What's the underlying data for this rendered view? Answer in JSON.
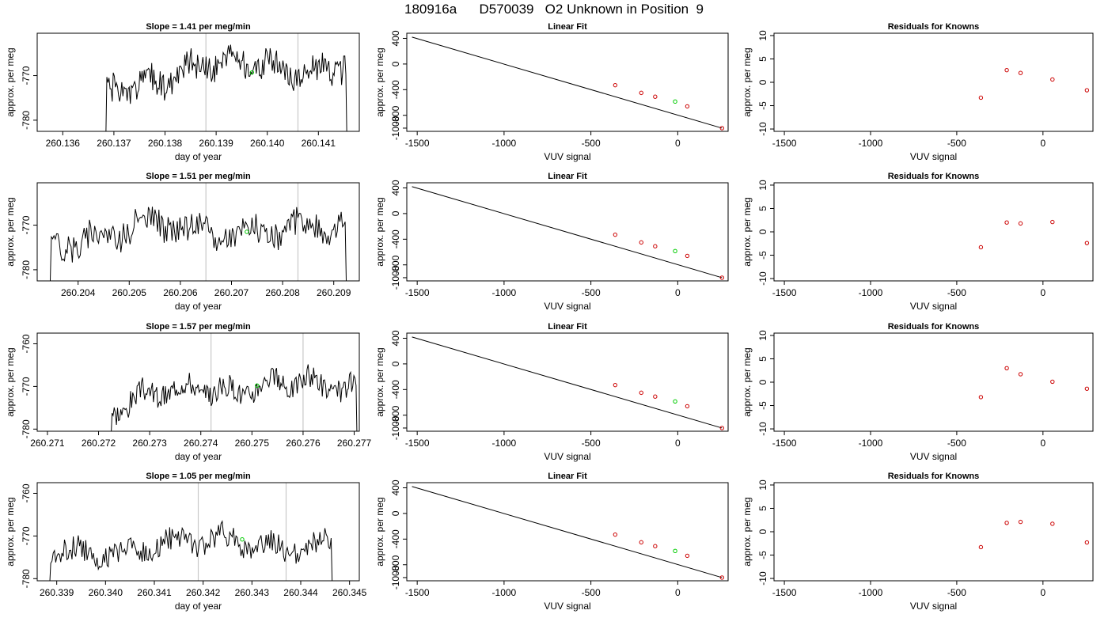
{
  "page_title": "180916a      D570039   O2 Unknown in Position  9",
  "colors": {
    "trace": "#000000",
    "fit_line": "#000000",
    "known_point": "#cc0000",
    "unknown_point": "#00cc00",
    "marker_line": "#c8c8c8",
    "axis": "#000000"
  },
  "chart_data": [
    {
      "type": "line",
      "panel": "trace",
      "title": "Slope =  1.41  per meg/min",
      "xlabel": "day of year",
      "ylabel": "approx. per meg",
      "xlim": [
        260.1355,
        260.1418
      ],
      "ylim": [
        -782.5,
        -760.5
      ],
      "xticks": [
        "260.136",
        "260.137",
        "260.138",
        "260.139",
        "260.140",
        "260.141"
      ],
      "yticks": [
        "-780",
        "-770"
      ],
      "markers_x": [
        260.1388,
        260.1406
      ],
      "green_point": {
        "x": 260.1397,
        "y": -769.3
      },
      "trace": {
        "x_start": 260.1368,
        "x_end": 260.1416,
        "mean": -768,
        "amp": 4,
        "rise": 7,
        "seed": 1
      }
    },
    {
      "type": "scatter",
      "panel": "fit",
      "title": "Linear Fit",
      "xlabel": "VUV signal",
      "ylabel": "approx. per meg",
      "xlim": [
        -1560,
        290
      ],
      "ylim": [
        -1050,
        480
      ],
      "xticks": [
        "-1500",
        "-1000",
        "-500",
        "0"
      ],
      "yticks": [
        "-1000",
        "-800",
        "-400",
        "0",
        "400"
      ],
      "line": {
        "x": [
          -1530,
          255
        ],
        "y": [
          420,
          -1000
        ]
      },
      "known_points": [
        [
          -360,
          -330
        ],
        [
          -210,
          -450
        ],
        [
          -130,
          -510
        ],
        [
          55,
          -660
        ],
        [
          255,
          -1000
        ]
      ],
      "unknown_point": [
        -15,
        -585
      ]
    },
    {
      "type": "scatter",
      "panel": "residual",
      "title": "Residuals for Knowns",
      "xlabel": "VUV signal",
      "ylabel": "approx. per meg",
      "xlim": [
        -1560,
        290
      ],
      "ylim": [
        -10.5,
        10.5
      ],
      "xticks": [
        "-1500",
        "-1000",
        "-500",
        "0"
      ],
      "yticks": [
        "-10",
        "-5",
        "0",
        "5",
        "10"
      ],
      "known_points": [
        [
          -360,
          -3.3
        ],
        [
          -210,
          2.6
        ],
        [
          -130,
          2.0
        ],
        [
          55,
          0.6
        ],
        [
          255,
          -1.7
        ]
      ]
    },
    {
      "type": "line",
      "panel": "trace",
      "title": "Slope =  1.51  per meg/min",
      "xlabel": "day of year",
      "ylabel": "approx. per meg",
      "xlim": [
        260.2032,
        260.2095
      ],
      "ylim": [
        -782.5,
        -760.5
      ],
      "xticks": [
        "260.204",
        "260.205",
        "260.206",
        "260.207",
        "260.208",
        "260.209"
      ],
      "yticks": [
        "-780",
        "-770"
      ],
      "markers_x": [
        260.2065,
        260.2083
      ],
      "green_point": {
        "x": 260.2073,
        "y": -771.5
      },
      "trace": {
        "x_start": 260.2034,
        "x_end": 260.2093,
        "mean": -771,
        "amp": 4,
        "rise": 2,
        "seed": 2
      }
    },
    {
      "type": "scatter",
      "panel": "fit",
      "title": "Linear Fit",
      "xlabel": "VUV signal",
      "ylabel": "approx. per meg",
      "xlim": [
        -1560,
        290
      ],
      "ylim": [
        -1050,
        480
      ],
      "xticks": [
        "-1500",
        "-1000",
        "-500",
        "0"
      ],
      "yticks": [
        "-1000",
        "-800",
        "-400",
        "0",
        "400"
      ],
      "line": {
        "x": [
          -1530,
          255
        ],
        "y": [
          420,
          -1000
        ]
      },
      "known_points": [
        [
          -360,
          -330
        ],
        [
          -210,
          -450
        ],
        [
          -130,
          -510
        ],
        [
          55,
          -660
        ],
        [
          255,
          -1000
        ]
      ],
      "unknown_point": [
        -15,
        -585
      ]
    },
    {
      "type": "scatter",
      "panel": "residual",
      "title": "Residuals for Knowns",
      "xlabel": "VUV signal",
      "ylabel": "approx. per meg",
      "xlim": [
        -1560,
        290
      ],
      "ylim": [
        -10.5,
        10.5
      ],
      "xticks": [
        "-1500",
        "-1000",
        "-500",
        "0"
      ],
      "yticks": [
        "-10",
        "-5",
        "0",
        "5",
        "10"
      ],
      "known_points": [
        [
          -360,
          -3.3
        ],
        [
          -210,
          2.0
        ],
        [
          -130,
          1.8
        ],
        [
          55,
          2.1
        ],
        [
          255,
          -2.4
        ]
      ]
    },
    {
      "type": "line",
      "panel": "trace",
      "title": "Slope =  1.57  per meg/min",
      "xlabel": "day of year",
      "ylabel": "approx. per meg",
      "xlim": [
        260.2708,
        260.2771
      ],
      "ylim": [
        -780.5,
        -757.5
      ],
      "xticks": [
        "260.271",
        "260.272",
        "260.273",
        "260.274",
        "260.275",
        "260.276",
        "260.277"
      ],
      "yticks": [
        "-780",
        "-770",
        "-760"
      ],
      "markers_x": [
        260.2742,
        260.276
      ],
      "green_point": {
        "x": 260.2751,
        "y": -769.8
      },
      "trace": {
        "x_start": 260.2722,
        "x_end": 260.2771,
        "mean": -770,
        "amp": 3.5,
        "rise": 6,
        "seed": 3
      }
    },
    {
      "type": "scatter",
      "panel": "fit",
      "title": "Linear Fit",
      "xlabel": "VUV signal",
      "ylabel": "approx. per meg",
      "xlim": [
        -1560,
        290
      ],
      "ylim": [
        -1050,
        480
      ],
      "xticks": [
        "-1500",
        "-1000",
        "-500",
        "0"
      ],
      "yticks": [
        "-1000",
        "-800",
        "-400",
        "0",
        "400"
      ],
      "line": {
        "x": [
          -1530,
          255
        ],
        "y": [
          420,
          -1000
        ]
      },
      "known_points": [
        [
          -360,
          -330
        ],
        [
          -210,
          -450
        ],
        [
          -130,
          -510
        ],
        [
          55,
          -660
        ],
        [
          255,
          -1000
        ]
      ],
      "unknown_point": [
        -15,
        -585
      ]
    },
    {
      "type": "scatter",
      "panel": "residual",
      "title": "Residuals for Knowns",
      "xlabel": "VUV signal",
      "ylabel": "approx. per meg",
      "xlim": [
        -1560,
        290
      ],
      "ylim": [
        -10.5,
        10.5
      ],
      "xticks": [
        "-1500",
        "-1000",
        "-500",
        "0"
      ],
      "yticks": [
        "-10",
        "-5",
        "0",
        "5",
        "10"
      ],
      "known_points": [
        [
          -360,
          -3.2
        ],
        [
          -210,
          3.0
        ],
        [
          -130,
          1.7
        ],
        [
          55,
          0.1
        ],
        [
          255,
          -1.4
        ]
      ]
    },
    {
      "type": "line",
      "panel": "trace",
      "title": "Slope =  1.05  per meg/min",
      "xlabel": "day of year",
      "ylabel": "approx. per meg",
      "xlim": [
        260.3386,
        260.3452
      ],
      "ylim": [
        -780.5,
        -757.5
      ],
      "xticks": [
        "260.339",
        "260.340",
        "260.341",
        "260.342",
        "260.343",
        "260.344",
        "260.345"
      ],
      "yticks": [
        "-780",
        "-770",
        "-760"
      ],
      "markers_x": [
        260.3419,
        260.3437
      ],
      "green_point": {
        "x": 260.3428,
        "y": -770.8
      },
      "trace": {
        "x_start": 260.3388,
        "x_end": 260.3447,
        "mean": -772,
        "amp": 3.5,
        "rise": 3,
        "seed": 4
      }
    },
    {
      "type": "scatter",
      "panel": "fit",
      "title": "Linear Fit",
      "xlabel": "VUV signal",
      "ylabel": "approx. per meg",
      "xlim": [
        -1560,
        290
      ],
      "ylim": [
        -1050,
        480
      ],
      "xticks": [
        "-1500",
        "-1000",
        "-500",
        "0"
      ],
      "yticks": [
        "-1000",
        "-800",
        "-400",
        "0",
        "400"
      ],
      "line": {
        "x": [
          -1530,
          255
        ],
        "y": [
          420,
          -1000
        ]
      },
      "known_points": [
        [
          -360,
          -330
        ],
        [
          -210,
          -450
        ],
        [
          -130,
          -510
        ],
        [
          55,
          -660
        ],
        [
          255,
          -1000
        ]
      ],
      "unknown_point": [
        -15,
        -585
      ]
    },
    {
      "type": "scatter",
      "panel": "residual",
      "title": "Residuals for Knowns",
      "xlabel": "VUV signal",
      "ylabel": "approx. per meg",
      "xlim": [
        -1560,
        290
      ],
      "ylim": [
        -10.5,
        10.5
      ],
      "xticks": [
        "-1500",
        "-1000",
        "-500",
        "0"
      ],
      "yticks": [
        "-10",
        "-5",
        "0",
        "5",
        "10"
      ],
      "known_points": [
        [
          -360,
          -3.3
        ],
        [
          -210,
          1.9
        ],
        [
          -130,
          2.1
        ],
        [
          55,
          1.7
        ],
        [
          255,
          -2.3
        ]
      ]
    }
  ]
}
